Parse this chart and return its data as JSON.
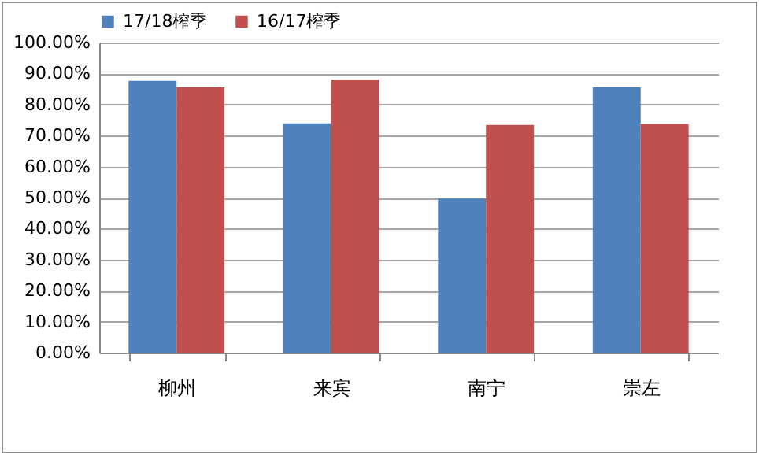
{
  "chart_data": {
    "type": "bar",
    "categories": [
      "柳州",
      "来宾",
      "南宁",
      "崇左"
    ],
    "series": [
      {
        "name": "17/18榨季",
        "color": "#4f81bd",
        "values": [
          87.6,
          73.9,
          49.7,
          85.6
        ]
      },
      {
        "name": "16/17榨季",
        "color": "#c0504d",
        "values": [
          85.6,
          88.0,
          73.4,
          73.7
        ]
      }
    ],
    "ylim": [
      0,
      100
    ],
    "yticks": [
      {
        "value": 0,
        "label": "0.00%"
      },
      {
        "value": 10,
        "label": "10.00%"
      },
      {
        "value": 20,
        "label": "20.00%"
      },
      {
        "value": 30,
        "label": "30.00%"
      },
      {
        "value": 40,
        "label": "40.00%"
      },
      {
        "value": 50,
        "label": "50.00%"
      },
      {
        "value": 60,
        "label": "60.00%"
      },
      {
        "value": 70,
        "label": "70.00%"
      },
      {
        "value": 80,
        "label": "80.00%"
      },
      {
        "value": 90,
        "label": "90.00%"
      },
      {
        "value": 100,
        "label": "100.00%"
      }
    ],
    "grid": "y",
    "legend": "top"
  }
}
